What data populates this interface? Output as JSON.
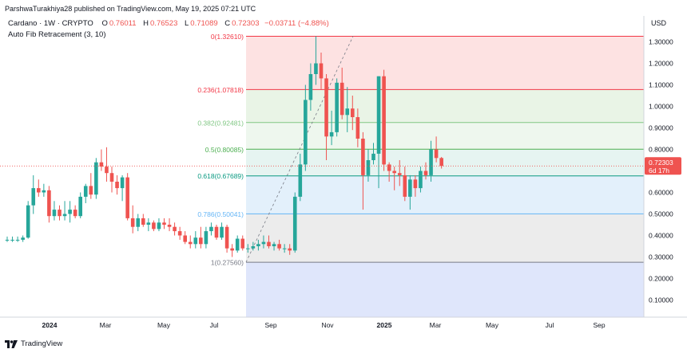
{
  "header": {
    "published": "ParshwaTurakhiya28 published on TradingView.com, May 19, 2025 07:21 UTC"
  },
  "symbol": {
    "name": "Cardano · 1W · CRYPTO",
    "open_label": "O",
    "open": "0.76011",
    "high_label": "H",
    "high": "0.76523",
    "low_label": "L",
    "low": "0.71089",
    "close_label": "C",
    "close": "0.72303",
    "change": "−0.03711 (−4.88%)"
  },
  "indicator": {
    "name": "Auto Fib Retracement (3, 10)"
  },
  "currency": "USD",
  "branding": {
    "name": "TradingView"
  },
  "price_badge": {
    "price": "0.72303",
    "countdown": "6d 17h"
  },
  "colors": {
    "up": "#26a69a",
    "down": "#ef5350",
    "fib_0": "#f23645",
    "fib_0236": "#f23645",
    "fib_0382": "#81c784",
    "fib_05": "#4caf50",
    "fib_0618": "#089981",
    "fib_0786": "#64b5f6",
    "fib_1": "#787b86"
  },
  "chart_data": {
    "type": "candlestick",
    "y_ticks": [
      "1.30000",
      "1.20000",
      "1.10000",
      "1.00000",
      "0.90000",
      "0.80000",
      "0.70000",
      "0.60000",
      "0.50000",
      "0.40000",
      "0.30000",
      "0.20000",
      "0.10000"
    ],
    "x_ticks": [
      "2024",
      "Mar",
      "May",
      "Jul",
      "Sep",
      "Nov",
      "2025",
      "Mar",
      "May",
      "Jul",
      "Sep"
    ],
    "ylim": [
      0.0,
      1.38
    ],
    "fib_levels": [
      {
        "ratio": "0",
        "price": 1.3261,
        "label": "0(1.32610)"
      },
      {
        "ratio": "0.236",
        "price": 1.07818,
        "label": "0.236(1.07818)"
      },
      {
        "ratio": "0.382",
        "price": 0.92481,
        "label": "0.382(0.92481)"
      },
      {
        "ratio": "0.5",
        "price": 0.80085,
        "label": "0.5(0.80085)"
      },
      {
        "ratio": "0.618",
        "price": 0.67689,
        "label": "0.618(0.67689)"
      },
      {
        "ratio": "0.786",
        "price": 0.50041,
        "label": "0.786(0.50041)"
      },
      {
        "ratio": "1",
        "price": 0.2756,
        "label": "1(0.27560)"
      }
    ],
    "candles": [
      {
        "o": 0.38,
        "h": 0.395,
        "l": 0.37,
        "c": 0.38
      },
      {
        "o": 0.38,
        "h": 0.395,
        "l": 0.37,
        "c": 0.38
      },
      {
        "o": 0.38,
        "h": 0.395,
        "l": 0.37,
        "c": 0.38
      },
      {
        "o": 0.38,
        "h": 0.4,
        "l": 0.37,
        "c": 0.39
      },
      {
        "o": 0.39,
        "h": 0.56,
        "l": 0.385,
        "c": 0.54
      },
      {
        "o": 0.54,
        "h": 0.68,
        "l": 0.5,
        "c": 0.62
      },
      {
        "o": 0.62,
        "h": 0.66,
        "l": 0.58,
        "c": 0.6
      },
      {
        "o": 0.6,
        "h": 0.64,
        "l": 0.58,
        "c": 0.61
      },
      {
        "o": 0.61,
        "h": 0.63,
        "l": 0.46,
        "c": 0.49
      },
      {
        "o": 0.49,
        "h": 0.56,
        "l": 0.47,
        "c": 0.52
      },
      {
        "o": 0.52,
        "h": 0.54,
        "l": 0.47,
        "c": 0.49
      },
      {
        "o": 0.49,
        "h": 0.56,
        "l": 0.47,
        "c": 0.5
      },
      {
        "o": 0.5,
        "h": 0.56,
        "l": 0.46,
        "c": 0.52
      },
      {
        "o": 0.52,
        "h": 0.54,
        "l": 0.48,
        "c": 0.49
      },
      {
        "o": 0.49,
        "h": 0.6,
        "l": 0.48,
        "c": 0.58
      },
      {
        "o": 0.58,
        "h": 0.64,
        "l": 0.55,
        "c": 0.63
      },
      {
        "o": 0.63,
        "h": 0.69,
        "l": 0.57,
        "c": 0.59
      },
      {
        "o": 0.59,
        "h": 0.76,
        "l": 0.57,
        "c": 0.74
      },
      {
        "o": 0.74,
        "h": 0.8,
        "l": 0.7,
        "c": 0.72
      },
      {
        "o": 0.72,
        "h": 0.81,
        "l": 0.65,
        "c": 0.69
      },
      {
        "o": 0.69,
        "h": 0.72,
        "l": 0.6,
        "c": 0.65
      },
      {
        "o": 0.65,
        "h": 0.68,
        "l": 0.59,
        "c": 0.62
      },
      {
        "o": 0.62,
        "h": 0.68,
        "l": 0.56,
        "c": 0.67
      },
      {
        "o": 0.67,
        "h": 0.69,
        "l": 0.47,
        "c": 0.48
      },
      {
        "o": 0.48,
        "h": 0.54,
        "l": 0.41,
        "c": 0.44
      },
      {
        "o": 0.44,
        "h": 0.5,
        "l": 0.42,
        "c": 0.48
      },
      {
        "o": 0.48,
        "h": 0.5,
        "l": 0.44,
        "c": 0.45
      },
      {
        "o": 0.45,
        "h": 0.48,
        "l": 0.42,
        "c": 0.46
      },
      {
        "o": 0.46,
        "h": 0.47,
        "l": 0.42,
        "c": 0.43
      },
      {
        "o": 0.43,
        "h": 0.48,
        "l": 0.42,
        "c": 0.46
      },
      {
        "o": 0.46,
        "h": 0.48,
        "l": 0.43,
        "c": 0.45
      },
      {
        "o": 0.45,
        "h": 0.48,
        "l": 0.42,
        "c": 0.44
      },
      {
        "o": 0.44,
        "h": 0.46,
        "l": 0.4,
        "c": 0.42
      },
      {
        "o": 0.42,
        "h": 0.44,
        "l": 0.38,
        "c": 0.4
      },
      {
        "o": 0.4,
        "h": 0.42,
        "l": 0.36,
        "c": 0.37
      },
      {
        "o": 0.37,
        "h": 0.4,
        "l": 0.34,
        "c": 0.36
      },
      {
        "o": 0.36,
        "h": 0.42,
        "l": 0.34,
        "c": 0.39
      },
      {
        "o": 0.39,
        "h": 0.44,
        "l": 0.34,
        "c": 0.36
      },
      {
        "o": 0.36,
        "h": 0.44,
        "l": 0.34,
        "c": 0.42
      },
      {
        "o": 0.42,
        "h": 0.46,
        "l": 0.4,
        "c": 0.44
      },
      {
        "o": 0.44,
        "h": 0.45,
        "l": 0.38,
        "c": 0.39
      },
      {
        "o": 0.39,
        "h": 0.46,
        "l": 0.38,
        "c": 0.44
      },
      {
        "o": 0.44,
        "h": 0.45,
        "l": 0.32,
        "c": 0.34
      },
      {
        "o": 0.34,
        "h": 0.36,
        "l": 0.3,
        "c": 0.33
      },
      {
        "o": 0.33,
        "h": 0.4,
        "l": 0.32,
        "c": 0.385
      },
      {
        "o": 0.385,
        "h": 0.4,
        "l": 0.33,
        "c": 0.34
      },
      {
        "o": 0.34,
        "h": 0.36,
        "l": 0.32,
        "c": 0.34
      },
      {
        "o": 0.34,
        "h": 0.37,
        "l": 0.33,
        "c": 0.35
      },
      {
        "o": 0.35,
        "h": 0.38,
        "l": 0.33,
        "c": 0.36
      },
      {
        "o": 0.36,
        "h": 0.4,
        "l": 0.34,
        "c": 0.37
      },
      {
        "o": 0.37,
        "h": 0.4,
        "l": 0.34,
        "c": 0.35
      },
      {
        "o": 0.35,
        "h": 0.37,
        "l": 0.33,
        "c": 0.36
      },
      {
        "o": 0.36,
        "h": 0.38,
        "l": 0.33,
        "c": 0.34
      },
      {
        "o": 0.34,
        "h": 0.36,
        "l": 0.32,
        "c": 0.34
      },
      {
        "o": 0.34,
        "h": 0.36,
        "l": 0.31,
        "c": 0.33
      },
      {
        "o": 0.33,
        "h": 0.6,
        "l": 0.32,
        "c": 0.58
      },
      {
        "o": 0.58,
        "h": 0.78,
        "l": 0.56,
        "c": 0.73
      },
      {
        "o": 0.73,
        "h": 1.1,
        "l": 0.7,
        "c": 1.03
      },
      {
        "o": 1.03,
        "h": 1.2,
        "l": 0.98,
        "c": 1.15
      },
      {
        "o": 1.15,
        "h": 1.326,
        "l": 1.1,
        "c": 1.2
      },
      {
        "o": 1.2,
        "h": 1.25,
        "l": 1.08,
        "c": 1.13
      },
      {
        "o": 1.13,
        "h": 1.15,
        "l": 0.75,
        "c": 0.86
      },
      {
        "o": 0.86,
        "h": 0.98,
        "l": 0.82,
        "c": 0.88
      },
      {
        "o": 0.88,
        "h": 1.13,
        "l": 0.86,
        "c": 1.11
      },
      {
        "o": 1.11,
        "h": 1.18,
        "l": 0.94,
        "c": 0.96
      },
      {
        "o": 0.96,
        "h": 1.09,
        "l": 0.88,
        "c": 0.99
      },
      {
        "o": 0.99,
        "h": 1.05,
        "l": 0.89,
        "c": 0.95
      },
      {
        "o": 0.95,
        "h": 0.99,
        "l": 0.81,
        "c": 0.85
      },
      {
        "o": 0.85,
        "h": 0.88,
        "l": 0.52,
        "c": 0.68
      },
      {
        "o": 0.68,
        "h": 0.8,
        "l": 0.65,
        "c": 0.75
      },
      {
        "o": 0.75,
        "h": 0.83,
        "l": 0.73,
        "c": 0.78
      },
      {
        "o": 0.78,
        "h": 1.14,
        "l": 0.62,
        "c": 1.14
      },
      {
        "o": 1.14,
        "h": 1.17,
        "l": 0.7,
        "c": 0.73
      },
      {
        "o": 0.73,
        "h": 0.74,
        "l": 0.65,
        "c": 0.7
      },
      {
        "o": 0.7,
        "h": 0.72,
        "l": 0.61,
        "c": 0.69
      },
      {
        "o": 0.69,
        "h": 0.75,
        "l": 0.63,
        "c": 0.68
      },
      {
        "o": 0.68,
        "h": 0.72,
        "l": 0.56,
        "c": 0.58
      },
      {
        "o": 0.58,
        "h": 0.68,
        "l": 0.52,
        "c": 0.66
      },
      {
        "o": 0.66,
        "h": 0.68,
        "l": 0.58,
        "c": 0.62
      },
      {
        "o": 0.62,
        "h": 0.72,
        "l": 0.6,
        "c": 0.7
      },
      {
        "o": 0.7,
        "h": 0.74,
        "l": 0.66,
        "c": 0.68
      },
      {
        "o": 0.68,
        "h": 0.84,
        "l": 0.65,
        "c": 0.8
      },
      {
        "o": 0.8,
        "h": 0.86,
        "l": 0.74,
        "c": 0.76
      },
      {
        "o": 0.76,
        "h": 0.765,
        "l": 0.711,
        "c": 0.723
      }
    ]
  }
}
